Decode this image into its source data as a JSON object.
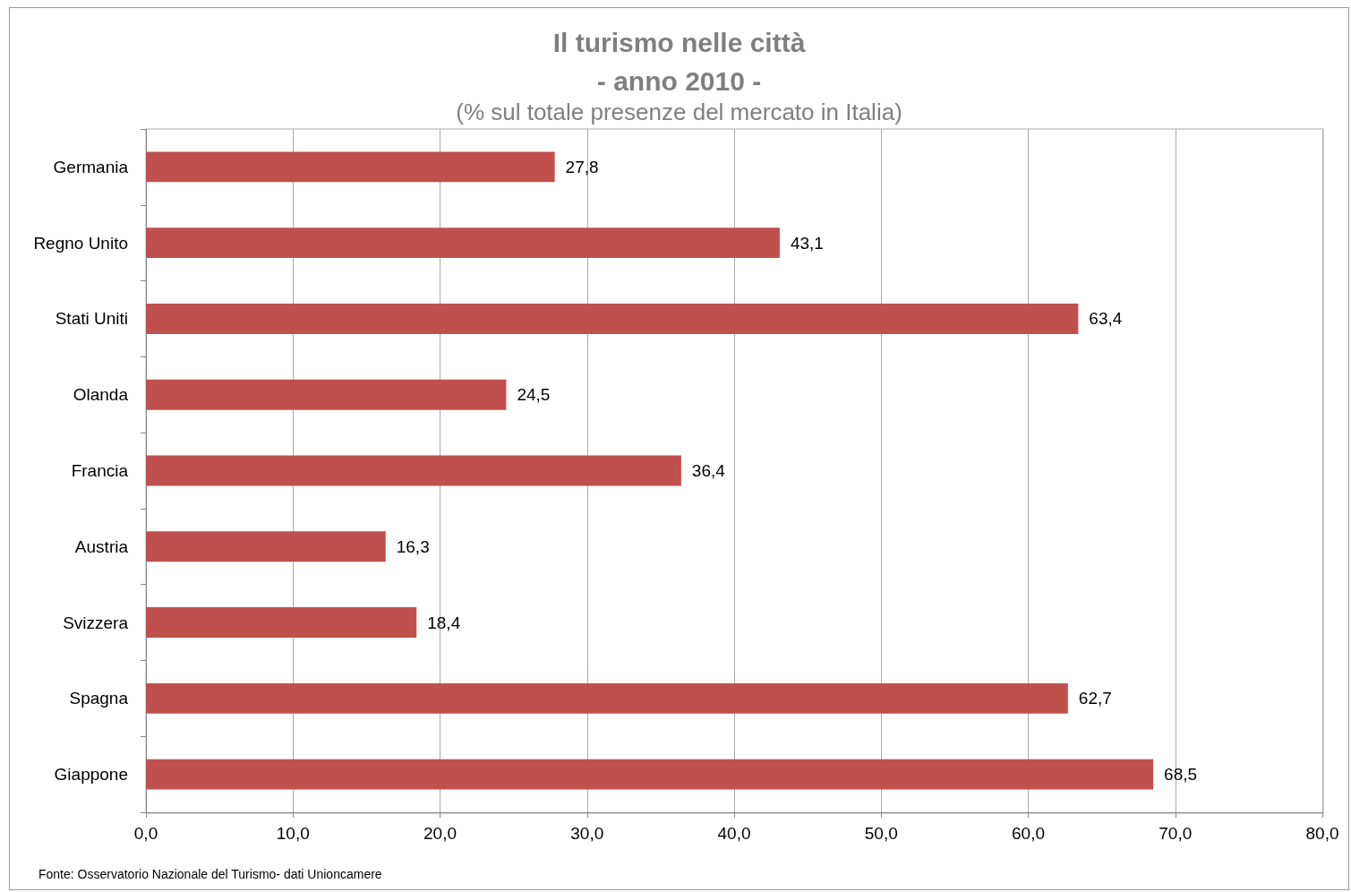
{
  "chart_data": {
    "type": "bar",
    "orientation": "horizontal",
    "title": "Il turismo nelle città\n- anno 2010 -",
    "subtitle": "(% sul totale presenze del mercato in Italia)",
    "categories": [
      "Germania",
      "Regno Unito",
      "Stati Uniti",
      "Olanda",
      "Francia",
      "Austria",
      "Svizzera",
      "Spagna",
      "Giappone"
    ],
    "values": [
      27.8,
      43.1,
      63.4,
      24.5,
      36.4,
      16.3,
      18.4,
      62.7,
      68.5
    ],
    "value_labels": [
      "27,8",
      "43,1",
      "63,4",
      "24,5",
      "36,4",
      "16,3",
      "18,4",
      "62,7",
      "68,5"
    ],
    "color": "#c0504d",
    "xlim": [
      0,
      80
    ],
    "xticks": [
      {
        "value": 0,
        "label": "0,0"
      },
      {
        "value": 10,
        "label": "10,0"
      },
      {
        "value": 20,
        "label": "20,0"
      },
      {
        "value": 30,
        "label": "30,0"
      },
      {
        "value": 40,
        "label": "40,0"
      },
      {
        "value": 50,
        "label": "50,0"
      },
      {
        "value": 60,
        "label": "60,0"
      },
      {
        "value": 70,
        "label": "70,0"
      },
      {
        "value": 80,
        "label": "80,0"
      }
    ],
    "grid": "x",
    "annotations": [
      "Fonte: Osservatorio Nazionale del Turismo- dati Unioncamere"
    ]
  }
}
